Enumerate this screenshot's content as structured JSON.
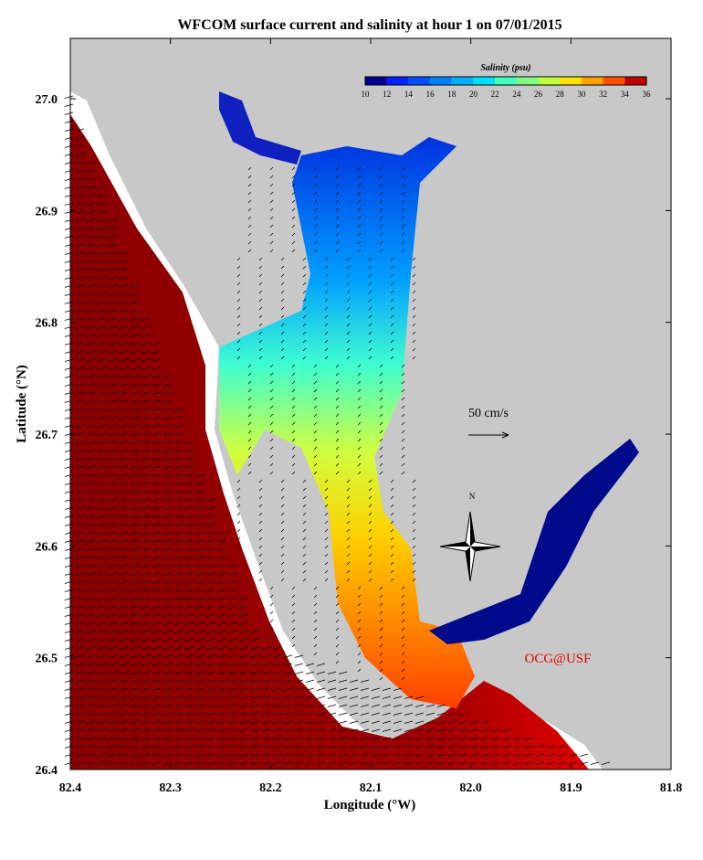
{
  "chart_data": {
    "type": "map",
    "title": "WFCOM surface current and salinity at hour 1 on 07/01/2015",
    "x_label": "Longitude (°W)",
    "y_label": "Latitude (°N)",
    "xlim": [
      82.4,
      81.8
    ],
    "xticks": [
      82.4,
      82.3,
      82.2,
      82.1,
      {
        "value": 82,
        "label": "82.0"
      },
      81.9,
      81.8
    ],
    "ylim": [
      26.4,
      27.054
    ],
    "yticks": [
      26.4,
      26.5,
      26.6,
      26.7,
      26.8,
      26.9,
      {
        "value": 27,
        "label": "27.0"
      }
    ],
    "colorbar": {
      "label": "Salinity (psu)",
      "lim": [
        10,
        36
      ],
      "ticks": [
        10,
        12,
        14,
        16,
        18,
        20,
        22,
        24,
        26,
        28,
        30,
        32,
        34,
        36
      ],
      "colors": [
        "#00008f",
        "#0020ff",
        "#0050ff",
        "#0080ff",
        "#00b0ff",
        "#00e0ff",
        "#40ffc0",
        "#80ff80",
        "#c0ff40",
        "#ffe000",
        "#ffa000",
        "#ff5000",
        "#c00000"
      ]
    },
    "scale_label": "50 cm/s",
    "compass_label": "N",
    "credit": "OCG@USF"
  }
}
